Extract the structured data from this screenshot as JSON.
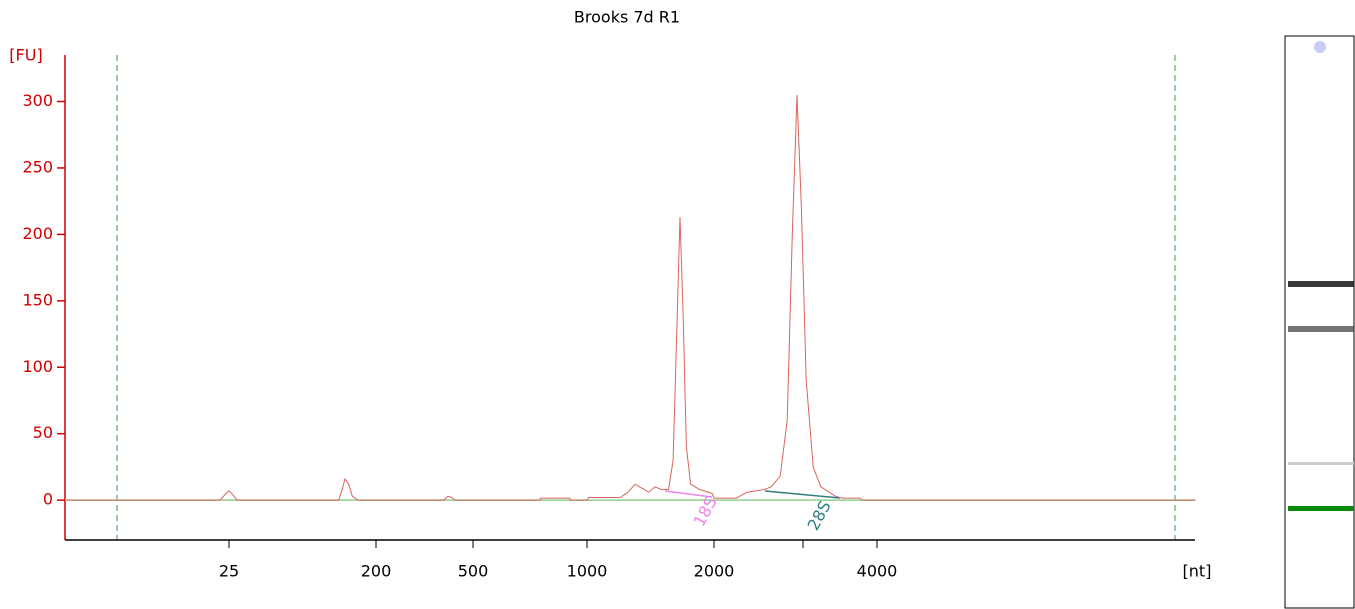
{
  "chart_data": {
    "type": "line",
    "title": "Brooks 7d R1",
    "y_label": "[FU]",
    "x_label": "[nt]",
    "color": "#d9635a",
    "x": [
      2.5,
      22,
      24,
      25,
      26,
      28,
      118,
      124,
      129,
      136,
      143,
      155,
      380,
      395,
      410,
      420,
      750,
      755,
      900,
      905,
      1000,
      1010,
      1200,
      1250,
      1300,
      1350,
      1400,
      1450,
      1500,
      1560,
      1600,
      1630,
      1661,
      1690,
      1720,
      1760,
      1850,
      1980,
      2000,
      2200,
      2300,
      2480,
      2550,
      2650,
      2730,
      2790,
      2846,
      2900,
      2960,
      3050,
      3150,
      3350,
      3450,
      3720,
      3750,
      15500
    ],
    "values": [
      0,
      0,
      5,
      7,
      5,
      0,
      0,
      8,
      16,
      12,
      3,
      0,
      0,
      3,
      2,
      0,
      0,
      1.5,
      1.5,
      0,
      0,
      2,
      2,
      6,
      12,
      9,
      6,
      10,
      8,
      8,
      30,
      120,
      213,
      140,
      40,
      12,
      8,
      5,
      1.5,
      1.5,
      6,
      8,
      10,
      18,
      60,
      200,
      305,
      220,
      90,
      25,
      10,
      3,
      1.5,
      1.5,
      0,
      0
    ],
    "xlim": [
      2.5,
      15500
    ],
    "xticks": [
      25,
      200,
      500,
      1000,
      2000,
      4000
    ],
    "ylim": [
      -30,
      335
    ],
    "yticks": [
      0,
      50,
      100,
      150,
      200,
      250,
      300
    ],
    "annotations": [
      {
        "text": "18S",
        "color": "#ee82ee"
      },
      {
        "text": "28S",
        "color": "#2f7f7f"
      }
    ]
  }
}
